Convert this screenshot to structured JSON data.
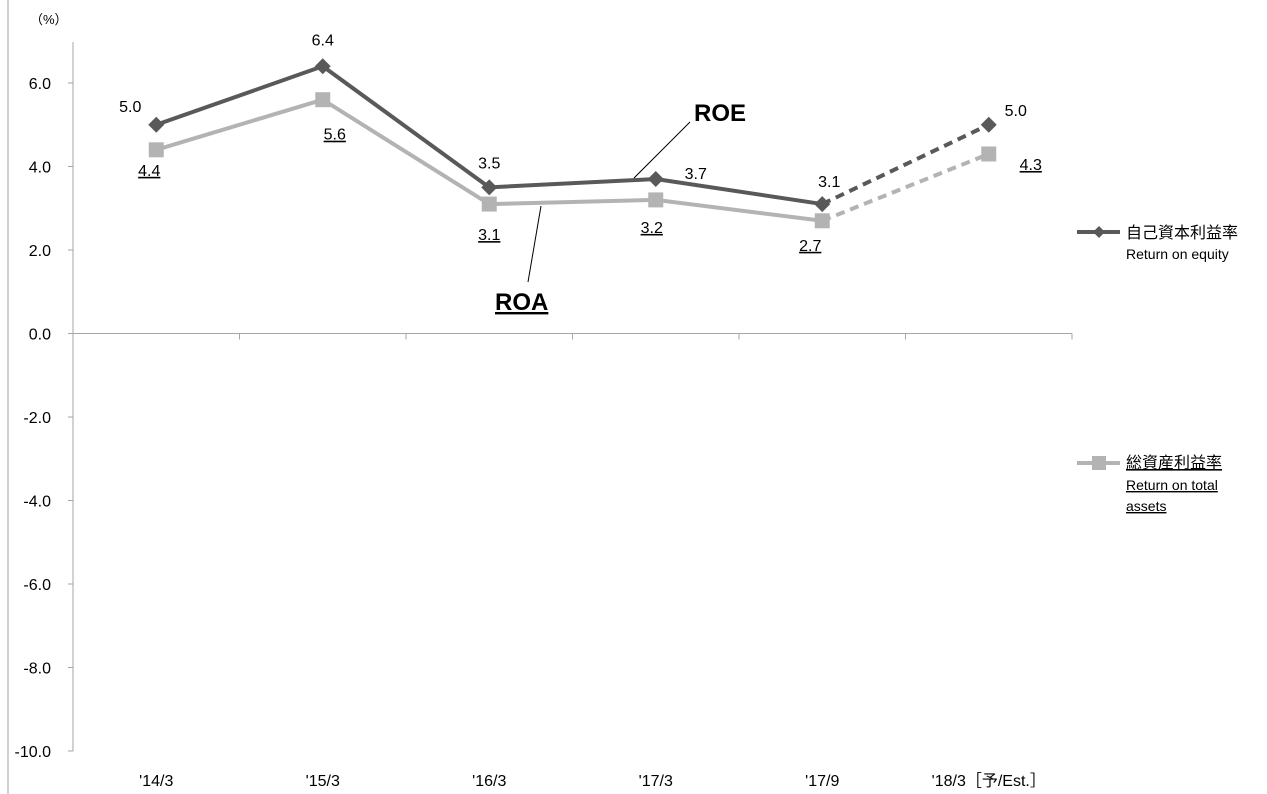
{
  "chart_data": {
    "type": "line",
    "unit_label": "（%）",
    "categories": [
      "'14/3",
      "'15/3",
      "'16/3",
      "'17/3",
      "'17/9",
      "'18/3［予/Est.］"
    ],
    "ylim": [
      -10,
      7
    ],
    "yticks": [
      "6.0",
      "4.0",
      "2.0",
      "0.0",
      "-2.0",
      "-4.0",
      "-6.0",
      "-8.0",
      "-10.0"
    ],
    "ytick_values": [
      6,
      4,
      2,
      0,
      -2,
      -4,
      -6,
      -8,
      -10
    ],
    "grid": false,
    "legend_position": "right",
    "series": [
      {
        "key": "roe",
        "name": "自己資本利益率",
        "name_en": "Return on equity",
        "callout": "ROE",
        "values": [
          5.0,
          6.4,
          3.5,
          3.7,
          3.1,
          5.0
        ],
        "labels": [
          "5.0",
          "6.4",
          "3.5",
          "3.7",
          "3.1",
          "5.0"
        ],
        "estimate_from_index": 4,
        "color": "#595959",
        "marker": "diamond"
      },
      {
        "key": "roa",
        "name": "総資産利益率",
        "name_en": "Return on total assets",
        "name_en_lines": [
          "Return on total",
          "assets"
        ],
        "callout": "ROA",
        "values": [
          4.4,
          5.6,
          3.1,
          3.2,
          2.7,
          4.3
        ],
        "labels": [
          "4.4",
          "5.6",
          "3.1",
          "3.2",
          "2.7",
          "4.3"
        ],
        "estimate_from_index": 4,
        "color": "#b3b3b3",
        "marker": "square"
      }
    ]
  }
}
